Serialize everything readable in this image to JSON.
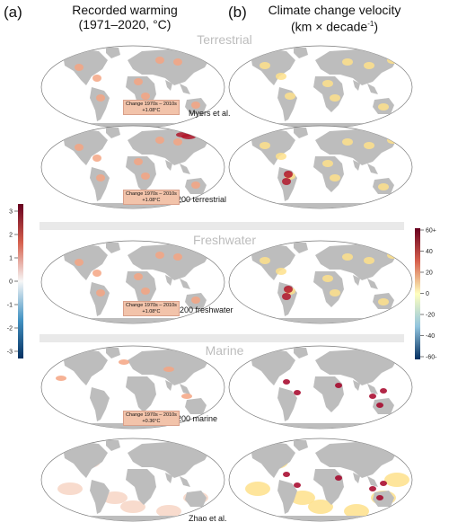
{
  "header": {
    "left_letter": "(a)",
    "left_title_line1": "Recorded warming",
    "left_title_line2": "(1971–2020, °C)",
    "right_letter": "(b)",
    "right_title_line1": "Climate change velocity",
    "right_title_line2": "(km × decade",
    "right_title_sup": "-1",
    "right_title_end": ")"
  },
  "sections": {
    "terrestrial": "Terrestrial",
    "freshwater": "Freshwater",
    "marine": "Marine"
  },
  "rows": [
    {
      "label": "Myers et al.",
      "change_line1": "Change 1970s – 2010s",
      "change_line2": "+1.08°C"
    },
    {
      "label": "G200 terrestrial",
      "change_line1": "Change 1970s – 2010s",
      "change_line2": "+1.08°C"
    },
    {
      "label": "G200 freshwater",
      "change_line1": "Change 1970s – 2010s",
      "change_line2": "+1.08°C"
    },
    {
      "label": "G200 marine",
      "change_line1": "Change 1970s – 2010s",
      "change_line2": "+0.36°C"
    },
    {
      "label": "Zhao et al."
    }
  ],
  "colorbar_left": {
    "ticks": [
      "3",
      "2",
      "1",
      "0",
      "-1",
      "-2",
      "-3"
    ],
    "colors": {
      "top": "#67001f",
      "mid": "#f7f7f7",
      "bottom": "#053061"
    }
  },
  "colorbar_right": {
    "ticks": [
      "60+",
      "40",
      "20",
      "0",
      "-20",
      "-40",
      "-60-"
    ],
    "colors": {
      "top": "#67001f",
      "upper": "#d6604d",
      "mid": "#ffffbf",
      "lower": "#92c5de",
      "bottom": "#053061"
    }
  },
  "colors": {
    "land": "#bdbdbd",
    "ocean_fill": "#ffffff",
    "warming": "#f4a582",
    "strong_warming": "#b2182b",
    "velocity_low": "#fee08b",
    "velocity_high": "#a50026"
  }
}
